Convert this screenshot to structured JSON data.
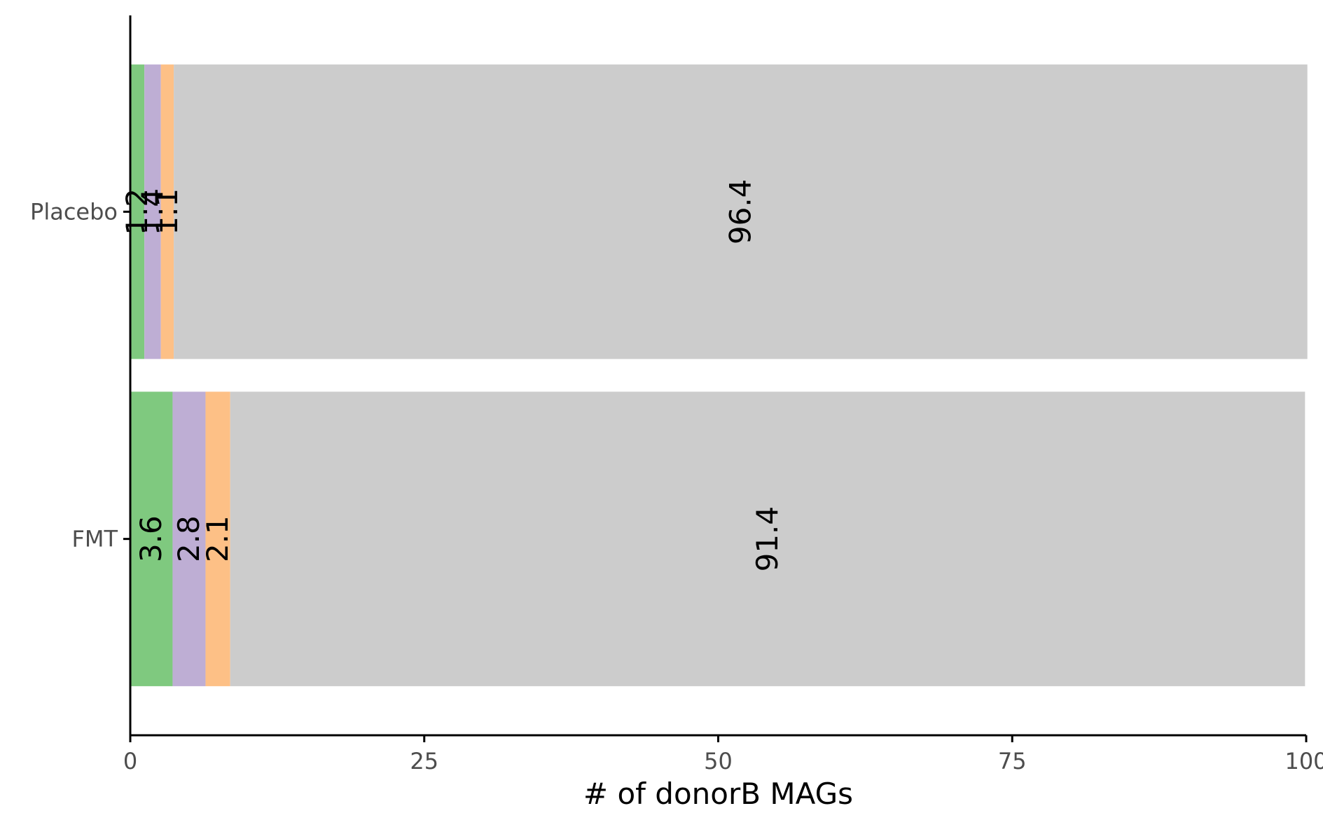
{
  "chart_data": {
    "type": "bar",
    "orientation": "horizontal",
    "stacked": true,
    "title": "",
    "xlabel": "# of donorB MAGs",
    "ylabel": "",
    "xlim": [
      0,
      100
    ],
    "x_ticks": [
      "0",
      "25",
      "50",
      "75",
      "100"
    ],
    "categories": [
      "Placebo",
      "FMT"
    ],
    "series": [
      {
        "color": "#7FC97F",
        "values": [
          1.2,
          3.6
        ],
        "labels": [
          "1.2",
          "3.6"
        ]
      },
      {
        "color": "#BEAED4",
        "values": [
          1.4,
          2.8
        ],
        "labels": [
          "1.4",
          "2.8"
        ]
      },
      {
        "color": "#FDC086",
        "values": [
          1.1,
          2.1
        ],
        "labels": [
          "1.1",
          "2.1"
        ]
      },
      {
        "color": "#CCCCCC",
        "values": [
          96.4,
          91.4
        ],
        "labels": [
          "96.4",
          "91.4"
        ]
      }
    ],
    "grid": false,
    "legend": "none"
  }
}
